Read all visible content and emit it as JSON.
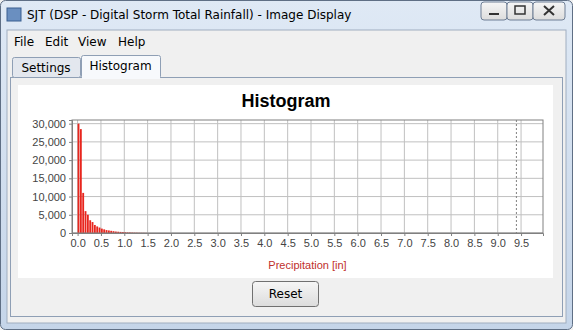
{
  "window": {
    "title": "SJT (DSP - Digital Storm Total Rainfall) - Image Display",
    "menu": [
      "File",
      "Edit",
      "View",
      "Help"
    ],
    "tabs": [
      "Settings",
      "Histogram"
    ],
    "button": "Reset"
  },
  "chart_data": {
    "type": "histogram",
    "title": "Histogram",
    "x_label": "Precipitation [in]",
    "bins": [
      0,
      0.05,
      0.1,
      0.15,
      0.2,
      0.25,
      0.3,
      0.35,
      0.4,
      0.45,
      0.5,
      0.55,
      0.6,
      0.65,
      0.7,
      0.75,
      0.8,
      0.85,
      0.9,
      0.95,
      1.0,
      1.05,
      1.1,
      1.15,
      1.2,
      1.25,
      1.3,
      1.35,
      1.4,
      1.45,
      1.5
    ],
    "values": [
      30000,
      28500,
      11000,
      6000,
      5000,
      3500,
      3000,
      2200,
      1800,
      1500,
      1200,
      1000,
      800,
      700,
      600,
      500,
      400,
      350,
      300,
      250,
      200,
      170,
      150,
      120,
      100,
      80,
      60,
      50,
      40,
      30
    ],
    "color": "#e8261e",
    "xlim": [
      -0.12,
      9.97
    ],
    "ylim": [
      0,
      31000
    ],
    "xticks": [
      {
        "value": 0,
        "label": "0.0"
      },
      0.5,
      {
        "value": 1,
        "label": "1.0"
      },
      1.5,
      {
        "value": 2,
        "label": "2.0"
      },
      2.5,
      {
        "value": 3,
        "label": "3.0"
      },
      3.5,
      {
        "value": 4,
        "label": "4.0"
      },
      4.5,
      {
        "value": 5,
        "label": "5.0"
      },
      5.5,
      {
        "value": 6,
        "label": "6.0"
      },
      6.5,
      {
        "value": 7,
        "label": "7.0"
      },
      7.5,
      {
        "value": 8,
        "label": "8.0"
      },
      8.5,
      {
        "value": 9,
        "label": "9.0"
      },
      9.5
    ],
    "yticks": [
      0,
      {
        "value": 5000,
        "label": "5,000"
      },
      {
        "value": 10000,
        "label": "10,000"
      },
      {
        "value": 15000,
        "label": "15,000"
      },
      {
        "value": 20000,
        "label": "20,000"
      },
      {
        "value": 25000,
        "label": "25,000"
      },
      {
        "value": 30000,
        "label": "30,000"
      }
    ],
    "grid": true,
    "dashed_line_x": 9.4
  }
}
